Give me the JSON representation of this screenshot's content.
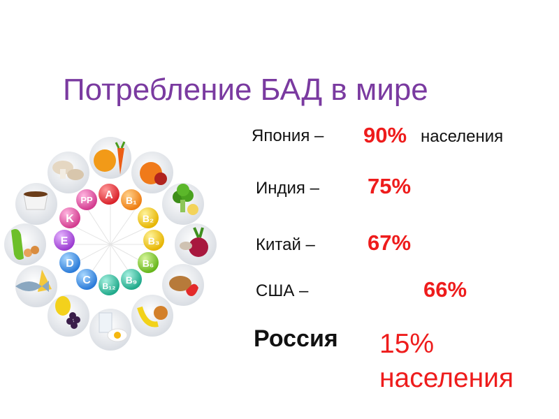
{
  "title": "Потребление БАД в мире",
  "rows": [
    {
      "country": "Япония –",
      "value": "90%",
      "suffix": "населения"
    },
    {
      "country": "Индия –",
      "value": "75%"
    },
    {
      "country": "Китай  –",
      "value": "67%"
    },
    {
      "country": "США –",
      "value": "66%"
    }
  ],
  "russia": {
    "country": "Россия",
    "value_line1": "15%",
    "value_line2": "населения"
  },
  "colors": {
    "title": "#7a3aa0",
    "accent": "#ee1c1c",
    "text": "#111111"
  },
  "vitamins": [
    "A",
    "B1",
    "B2",
    "B3",
    "B6",
    "B9",
    "B12",
    "C",
    "D",
    "E",
    "K",
    "PP"
  ],
  "foods": [
    "orange-carrot",
    "apple",
    "broccoli",
    "beet",
    "walnut-strawberry",
    "onion-banana",
    "milk-egg",
    "grapes-lemon",
    "fish-cheese",
    "peas",
    "tea",
    "mushrooms"
  ]
}
